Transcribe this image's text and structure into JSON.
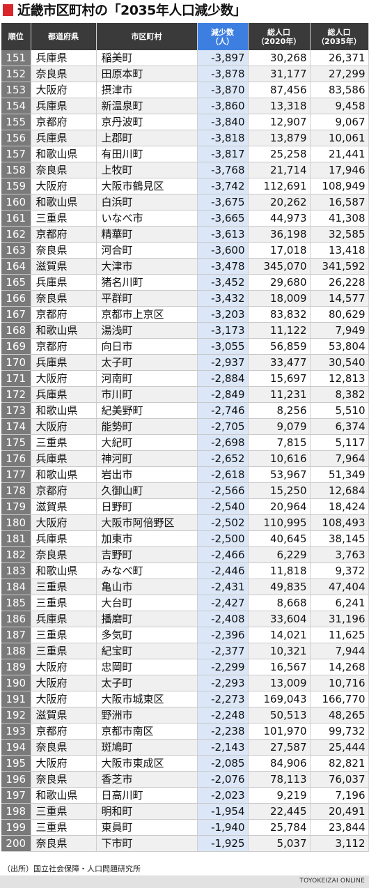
{
  "title": "近畿市区町村の「2035年人口減少数」",
  "table": {
    "headers": {
      "rank": "順位",
      "prefecture": "都道府県",
      "city": "市区町村",
      "decrease": "減少数\n（人）",
      "pop2020": "総人口\n（2020年）",
      "pop2035": "総人口\n（2035年）"
    },
    "rows": [
      [
        "151",
        "兵庫県",
        "稲美町",
        "-3,897",
        "30,268",
        "26,371"
      ],
      [
        "152",
        "奈良県",
        "田原本町",
        "-3,878",
        "31,177",
        "27,299"
      ],
      [
        "153",
        "大阪府",
        "摂津市",
        "-3,870",
        "87,456",
        "83,586"
      ],
      [
        "154",
        "兵庫県",
        "新温泉町",
        "-3,860",
        "13,318",
        "9,458"
      ],
      [
        "155",
        "京都府",
        "京丹波町",
        "-3,840",
        "12,907",
        "9,067"
      ],
      [
        "156",
        "兵庫県",
        "上郡町",
        "-3,818",
        "13,879",
        "10,061"
      ],
      [
        "157",
        "和歌山県",
        "有田川町",
        "-3,817",
        "25,258",
        "21,441"
      ],
      [
        "158",
        "奈良県",
        "上牧町",
        "-3,768",
        "21,714",
        "17,946"
      ],
      [
        "159",
        "大阪府",
        "大阪市鶴見区",
        "-3,742",
        "112,691",
        "108,949"
      ],
      [
        "160",
        "和歌山県",
        "白浜町",
        "-3,675",
        "20,262",
        "16,587"
      ],
      [
        "161",
        "三重県",
        "いなべ市",
        "-3,665",
        "44,973",
        "41,308"
      ],
      [
        "162",
        "京都府",
        "精華町",
        "-3,613",
        "36,198",
        "32,585"
      ],
      [
        "163",
        "奈良県",
        "河合町",
        "-3,600",
        "17,018",
        "13,418"
      ],
      [
        "164",
        "滋賀県",
        "大津市",
        "-3,478",
        "345,070",
        "341,592"
      ],
      [
        "165",
        "兵庫県",
        "猪名川町",
        "-3,452",
        "29,680",
        "26,228"
      ],
      [
        "166",
        "奈良県",
        "平群町",
        "-3,432",
        "18,009",
        "14,577"
      ],
      [
        "167",
        "京都府",
        "京都市上京区",
        "-3,203",
        "83,832",
        "80,629"
      ],
      [
        "168",
        "和歌山県",
        "湯浅町",
        "-3,173",
        "11,122",
        "7,949"
      ],
      [
        "169",
        "京都府",
        "向日市",
        "-3,055",
        "56,859",
        "53,804"
      ],
      [
        "170",
        "兵庫県",
        "太子町",
        "-2,937",
        "33,477",
        "30,540"
      ],
      [
        "171",
        "大阪府",
        "河南町",
        "-2,884",
        "15,697",
        "12,813"
      ],
      [
        "172",
        "兵庫県",
        "市川町",
        "-2,849",
        "11,231",
        "8,382"
      ],
      [
        "173",
        "和歌山県",
        "紀美野町",
        "-2,746",
        "8,256",
        "5,510"
      ],
      [
        "174",
        "大阪府",
        "能勢町",
        "-2,705",
        "9,079",
        "6,374"
      ],
      [
        "175",
        "三重県",
        "大紀町",
        "-2,698",
        "7,815",
        "5,117"
      ],
      [
        "176",
        "兵庫県",
        "神河町",
        "-2,652",
        "10,616",
        "7,964"
      ],
      [
        "177",
        "和歌山県",
        "岩出市",
        "-2,618",
        "53,967",
        "51,349"
      ],
      [
        "178",
        "京都府",
        "久御山町",
        "-2,566",
        "15,250",
        "12,684"
      ],
      [
        "179",
        "滋賀県",
        "日野町",
        "-2,540",
        "20,964",
        "18,424"
      ],
      [
        "180",
        "大阪府",
        "大阪市阿倍野区",
        "-2,502",
        "110,995",
        "108,493"
      ],
      [
        "181",
        "兵庫県",
        "加東市",
        "-2,500",
        "40,645",
        "38,145"
      ],
      [
        "182",
        "奈良県",
        "吉野町",
        "-2,466",
        "6,229",
        "3,763"
      ],
      [
        "183",
        "和歌山県",
        "みなべ町",
        "-2,446",
        "11,818",
        "9,372"
      ],
      [
        "184",
        "三重県",
        "亀山市",
        "-2,431",
        "49,835",
        "47,404"
      ],
      [
        "185",
        "三重県",
        "大台町",
        "-2,427",
        "8,668",
        "6,241"
      ],
      [
        "186",
        "兵庫県",
        "播磨町",
        "-2,408",
        "33,604",
        "31,196"
      ],
      [
        "187",
        "三重県",
        "多気町",
        "-2,396",
        "14,021",
        "11,625"
      ],
      [
        "188",
        "三重県",
        "紀宝町",
        "-2,377",
        "10,321",
        "7,944"
      ],
      [
        "189",
        "大阪府",
        "忠岡町",
        "-2,299",
        "16,567",
        "14,268"
      ],
      [
        "190",
        "大阪府",
        "太子町",
        "-2,293",
        "13,009",
        "10,716"
      ],
      [
        "191",
        "大阪府",
        "大阪市城東区",
        "-2,273",
        "169,043",
        "166,770"
      ],
      [
        "192",
        "滋賀県",
        "野洲市",
        "-2,248",
        "50,513",
        "48,265"
      ],
      [
        "193",
        "京都府",
        "京都市南区",
        "-2,238",
        "101,970",
        "99,732"
      ],
      [
        "194",
        "奈良県",
        "斑鳩町",
        "-2,143",
        "27,587",
        "25,444"
      ],
      [
        "195",
        "大阪府",
        "大阪市東成区",
        "-2,085",
        "84,906",
        "82,821"
      ],
      [
        "196",
        "奈良県",
        "香芝市",
        "-2,076",
        "78,113",
        "76,037"
      ],
      [
        "197",
        "和歌山県",
        "日高川町",
        "-2,023",
        "9,219",
        "7,196"
      ],
      [
        "198",
        "三重県",
        "明和町",
        "-1,954",
        "22,445",
        "20,491"
      ],
      [
        "199",
        "三重県",
        "東員町",
        "-1,940",
        "25,784",
        "23,844"
      ],
      [
        "200",
        "奈良県",
        "下市町",
        "-1,925",
        "5,037",
        "3,112"
      ]
    ]
  },
  "source": "（出所）国立社会保障・人口問題研究所",
  "brand": "TOYOKEIZAI ONLINE",
  "colors": {
    "accent": "#d9262a",
    "header": "#3a3a3a",
    "header_highlight": "#3d7fe0",
    "rank_cell": "#7a7a7a",
    "decrease_cell": "#dbe7f7"
  }
}
